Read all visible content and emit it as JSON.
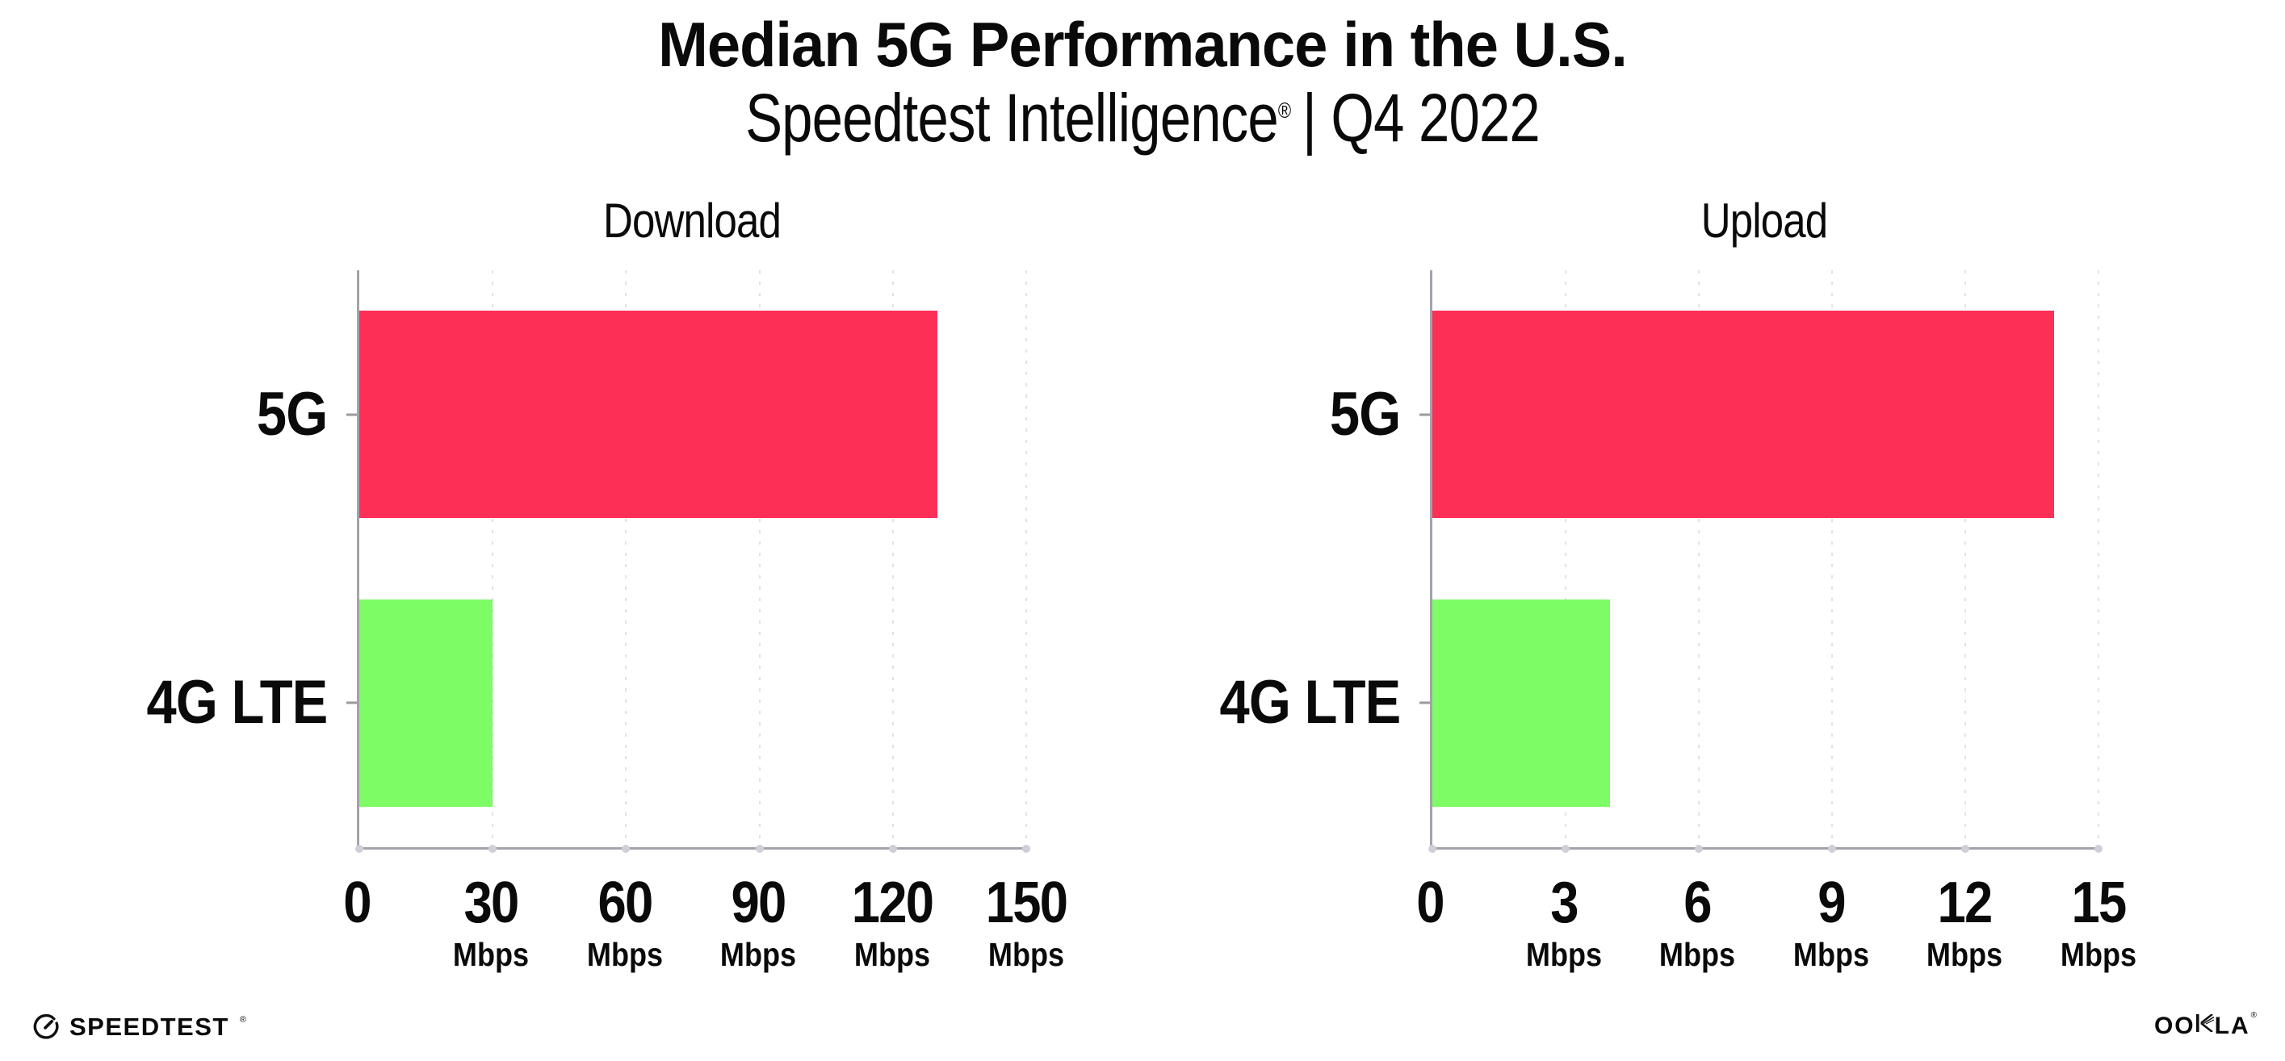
{
  "header": {
    "title": "Median 5G Performance in the U.S.",
    "subtitle_brand": "Speedtest Intelligence",
    "subtitle_mark": "®",
    "subtitle_rest": "| Q4 2022"
  },
  "chart_data": [
    {
      "type": "bar",
      "orientation": "horizontal",
      "title": "Download",
      "categories": [
        "5G",
        "4G LTE"
      ],
      "values": [
        130,
        30
      ],
      "unit": "Mbps",
      "xlim": [
        0,
        150
      ],
      "xticks": [
        0,
        30,
        60,
        90,
        120,
        150
      ],
      "xtick_unit_labels": [
        "",
        "Mbps",
        "Mbps",
        "Mbps",
        "Mbps",
        "Mbps"
      ],
      "series_colors": [
        "#fd2f57",
        "#7dfc66"
      ],
      "grid": "vertical-dotted",
      "legend": "none"
    },
    {
      "type": "bar",
      "orientation": "horizontal",
      "title": "Upload",
      "categories": [
        "5G",
        "4G LTE"
      ],
      "values": [
        14,
        4
      ],
      "unit": "Mbps",
      "xlim": [
        0,
        15
      ],
      "xticks": [
        0,
        3,
        6,
        9,
        12,
        15
      ],
      "xtick_unit_labels": [
        "",
        "Mbps",
        "Mbps",
        "Mbps",
        "Mbps",
        "Mbps"
      ],
      "series_colors": [
        "#fd2f57",
        "#7dfc66"
      ],
      "grid": "vertical-dotted",
      "legend": "none"
    }
  ],
  "colors": {
    "bar_5g": "#fd2f57",
    "bar_4g_lte": "#7dfc66",
    "axis": "#a3a3ab",
    "gridline": "#e1e1e9",
    "text": "#0a0a0a",
    "background": "#ffffff"
  },
  "footer": {
    "speedtest_label": "SPEEDTEST",
    "speedtest_mark": "®",
    "ookla_left": "OO",
    "ookla_right": "LA",
    "ookla_mark": "®"
  }
}
